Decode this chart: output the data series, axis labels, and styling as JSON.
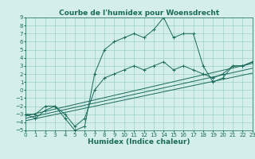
{
  "title": "Courbe de l'humidex pour Woensdrecht",
  "xlabel": "Humidex (Indice chaleur)",
  "bg_color": "#d4eeec",
  "grid_color": "#9ecfc9",
  "line_color": "#1a6b5a",
  "x_min": 0,
  "x_max": 23,
  "y_min": -5,
  "y_max": 9,
  "curve1_x": [
    0,
    1,
    2,
    3,
    4,
    5,
    6,
    7,
    8,
    9,
    10,
    11,
    12,
    13,
    14,
    15,
    16,
    17,
    18,
    19,
    20,
    21,
    22,
    23
  ],
  "curve1_y": [
    -3,
    -3.5,
    -2.5,
    -2,
    -3.5,
    -5,
    -4.5,
    2,
    5,
    6,
    6.5,
    7,
    6.5,
    7.5,
    9,
    6.5,
    7,
    7,
    3,
    1,
    1.5,
    3,
    3,
    3.5
  ],
  "curve2_x": [
    0,
    1,
    2,
    3,
    4,
    5,
    6,
    7,
    8,
    9,
    10,
    11,
    12,
    13,
    14,
    15,
    16,
    17,
    18,
    19,
    20,
    21,
    22,
    23
  ],
  "curve2_y": [
    -3,
    -3,
    -2,
    -2,
    -3,
    -4.5,
    -3.5,
    0,
    1.5,
    2,
    2.5,
    3,
    2.5,
    3,
    3.5,
    2.5,
    3,
    2.5,
    2,
    1.5,
    2,
    3,
    3,
    3.5
  ],
  "line1_x": [
    0,
    23
  ],
  "line1_y": [
    -3.2,
    3.3
  ],
  "line2_x": [
    0,
    23
  ],
  "line2_y": [
    -3.5,
    2.7
  ],
  "line3_x": [
    0,
    23
  ],
  "line3_y": [
    -3.8,
    2.1
  ],
  "x_ticks": [
    0,
    1,
    2,
    3,
    4,
    5,
    6,
    7,
    8,
    9,
    10,
    11,
    12,
    13,
    14,
    15,
    16,
    17,
    18,
    19,
    20,
    21,
    22,
    23
  ],
  "y_ticks": [
    -5,
    -4,
    -3,
    -2,
    -1,
    0,
    1,
    2,
    3,
    4,
    5,
    6,
    7,
    8,
    9
  ],
  "title_fontsize": 6.5,
  "tick_fontsize": 5,
  "xlabel_fontsize": 6.5
}
